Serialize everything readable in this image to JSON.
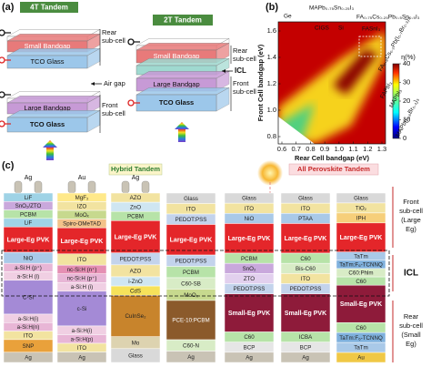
{
  "panel_a": {
    "label": "(a)",
    "four_t": {
      "title": "4T Tandem",
      "rear": [
        "Rear",
        "sub-cell"
      ],
      "rear_layer": "Small Bandgap",
      "rear_glass": "TCO Glass",
      "gap": "Air gap",
      "front_layer": "Large Bandgap",
      "front": [
        "Front",
        "sub-cell"
      ],
      "front_glass": "TCO Glass"
    },
    "two_t": {
      "title": "2T Tandem",
      "rear_layer": "Small Bandgap",
      "rear": [
        "Rear",
        "sub-cell"
      ],
      "icl": "ICL",
      "front_layer": "Large Bandgap",
      "front": [
        "Front",
        "sub-cell"
      ],
      "glass": "TCO Glass"
    }
  },
  "panel_b": {
    "label": "(b)",
    "x_label": "Rear Cell bandgap (eV)",
    "y_label": "Front Cell bandgap (eV)",
    "colorbar_label": "η(%)",
    "xticks": [
      "0.6",
      "0.7",
      "0.8",
      "0.9",
      "1.0",
      "1.1",
      "1.2",
      "1.3"
    ],
    "yticks": [
      "0.8",
      "1.0",
      "1.2",
      "1.4",
      "1.6"
    ],
    "cticks": [
      "0",
      "10",
      "20",
      "30",
      "40"
    ],
    "annotations": [
      "Ge",
      "CIGS",
      "Si",
      "MAPb₀.₇₅Sn₀.₂₅I₃",
      "FA₀.₇₅Cs₀.₂₅Pb₀.₅Sn₀.₅I₃",
      "FASnI₃",
      "FA₀.₈Cs₀.₂Pb(I₀.₇Br₀.₃)₃",
      "FAPbI₃",
      "MAPbI₃",
      "MAPb(I₀.₆Br₀.₄)₃"
    ]
  },
  "panel_c": {
    "label": "(c)",
    "groups": [
      "Hybrid Tandem",
      "All Perovskite Tandem"
    ],
    "side": {
      "front": [
        "Front",
        "sub-cell",
        "(Large",
        "Eg)"
      ],
      "icl": "ICL",
      "rear": [
        "Rear",
        "sub-cell",
        "(Small",
        "Eg)"
      ]
    },
    "columns": [
      {
        "top": "Ag",
        "layers": [
          {
            "label": "LiF",
            "color": "#9fd3e6"
          },
          {
            "label": "SnO₂/ZTO",
            "color": "#c9a8dc"
          },
          {
            "label": "PCBM",
            "color": "#b7e3a8"
          },
          {
            "label": "LiF",
            "color": "#9fd3e6"
          },
          {
            "label": "Large-Eg PVK",
            "color": "#e4262a"
          },
          {
            "label": "NiO",
            "color": "#a9c9e8"
          },
          {
            "label": "a-Si:H (p⁺)",
            "color": "#e8b6d6"
          },
          {
            "label": "a-Si:H (i)",
            "color": "#f0cfe3"
          },
          {
            "label": "C-Si",
            "color": "#a48ad6"
          },
          {
            "label": "a-Si:H(i)",
            "color": "#f0cfe3"
          },
          {
            "label": "a-Si:H(n)",
            "color": "#e8b6d6"
          },
          {
            "label": "ITO",
            "color": "#f2e3a0"
          },
          {
            "label": "SNP",
            "color": "#e9a13b"
          },
          {
            "label": "Ag",
            "color": "#c9c3b5"
          }
        ]
      },
      {
        "top": "Au",
        "layers": [
          {
            "label": "MgF₂",
            "color": "#ffe98a"
          },
          {
            "label": "IZO",
            "color": "#f2e3a0"
          },
          {
            "label": "MoOₓ",
            "color": "#c7d98e"
          },
          {
            "label": "Spiro-OMeTAD",
            "color": "#f3c28a"
          },
          {
            "label": "Large-Eg PVK",
            "color": "#e4262a"
          },
          {
            "label": "ITO",
            "color": "#f2e3a0"
          },
          {
            "label": "nc-Si:H (n⁺)",
            "color": "#e58fb3"
          },
          {
            "label": "nc-Si:H (p⁺)",
            "color": "#e8b6d6"
          },
          {
            "label": "a-Si:H (i)",
            "color": "#f0cfe3"
          },
          {
            "label": "c-Si",
            "color": "#a48ad6"
          },
          {
            "label": "a-Si:H(i)",
            "color": "#f0cfe3"
          },
          {
            "label": "a-Si:H(p)",
            "color": "#e8b6d6"
          },
          {
            "label": "ITO",
            "color": "#f2e3a0"
          },
          {
            "label": "Ag",
            "color": "#c9c3b5"
          }
        ]
      },
      {
        "top": "Ag",
        "layers": [
          {
            "label": "AZO",
            "color": "#f2e3a0"
          },
          {
            "label": "ZnO",
            "color": "#cfe6f2"
          },
          {
            "label": "PCBM",
            "color": "#b7e3a8"
          },
          {
            "label": "Large-Eg PVK",
            "color": "#e4262a"
          },
          {
            "label": "PEDOT:PSS",
            "color": "#c3d3ec"
          },
          {
            "label": "AZO",
            "color": "#f2e3a0"
          },
          {
            "label": "i-ZnO",
            "color": "#cfe6f2"
          },
          {
            "label": "CdS",
            "color": "#f6e25a"
          },
          {
            "label": "CuInSe₂",
            "color": "#c8842c"
          },
          {
            "label": "Mo",
            "color": "#ddd3b0"
          },
          {
            "label": "Glass",
            "color": "#d9d9d9"
          }
        ]
      },
      {
        "top": null,
        "layers": [
          {
            "label": "Glass",
            "color": "#d9d9d9"
          },
          {
            "label": "ITO",
            "color": "#f2e3a0"
          },
          {
            "label": "PEDOT:PSS",
            "color": "#c3d3ec"
          },
          {
            "label": "Large-Eg PVK",
            "color": "#e4262a"
          },
          {
            "label": "PEDOT:PSS",
            "color": "#c3d3ec"
          },
          {
            "label": "PCBM",
            "color": "#b7e3a8"
          },
          {
            "label": "C60-SB",
            "color": "#d8ecc6"
          },
          {
            "label": "MoOₓ",
            "color": "#c7d98e"
          },
          {
            "label": "PCE-10:PCBM",
            "color": "#8b5a2b"
          },
          {
            "label": "C60-N",
            "color": "#d8ecc6"
          },
          {
            "label": "Ag",
            "color": "#c9c3b5"
          }
        ]
      },
      {
        "top": null,
        "layers": [
          {
            "label": "Glass",
            "color": "#d9d9d9"
          },
          {
            "label": "ITO",
            "color": "#f2e3a0"
          },
          {
            "label": "NiO",
            "color": "#a9c9e8"
          },
          {
            "label": "Large-Eg PVK",
            "color": "#e4262a"
          },
          {
            "label": "PCBM",
            "color": "#b7e3a8"
          },
          {
            "label": "SnO₂",
            "color": "#c9a8dc"
          },
          {
            "label": "ZTO",
            "color": "#e2d0ee"
          },
          {
            "label": "PEDOT:PSS",
            "color": "#c3d3ec"
          },
          {
            "label": "Small-Eg PVK",
            "color": "#8e1b3a"
          },
          {
            "label": "C60",
            "color": "#b7e3a8"
          },
          {
            "label": "BCP",
            "color": "#e6e6e6"
          },
          {
            "label": "Ag",
            "color": "#c9c3b5"
          }
        ]
      },
      {
        "top": null,
        "layers": [
          {
            "label": "Glass",
            "color": "#d9d9d9"
          },
          {
            "label": "ITO",
            "color": "#f2e3a0"
          },
          {
            "label": "PTAA",
            "color": "#a9c9e8"
          },
          {
            "label": "Large-Eg PVK",
            "color": "#e4262a"
          },
          {
            "label": "C60",
            "color": "#b7e3a8"
          },
          {
            "label": "Bis-C60",
            "color": "#d8ecc6"
          },
          {
            "label": "ITO",
            "color": "#f2e3a0"
          },
          {
            "label": "PEDOT:PSS",
            "color": "#c3d3ec"
          },
          {
            "label": "Small-Eg PVK",
            "color": "#8e1b3a"
          },
          {
            "label": "ICBA",
            "color": "#b7e3a8"
          },
          {
            "label": "BCP",
            "color": "#e6e6e6"
          },
          {
            "label": "Ag",
            "color": "#c9c3b5"
          }
        ]
      },
      {
        "top": null,
        "layers": [
          {
            "label": "Glass",
            "color": "#d9d9d9"
          },
          {
            "label": "TiO₂",
            "color": "#f2e3a0"
          },
          {
            "label": "IPH",
            "color": "#f6cf7a"
          },
          {
            "label": "Large-Eg PVK",
            "color": "#e4262a"
          },
          {
            "label": "TaTm",
            "color": "#a9c9e8"
          },
          {
            "label": "TaTm:F₆-TCNNQ",
            "color": "#7fb1dd"
          },
          {
            "label": "C60:Phlm",
            "color": "#d8ecc6"
          },
          {
            "label": "C60",
            "color": "#b7e3a8"
          },
          {
            "label": "Small-Eg PVK",
            "color": "#8e1b3a"
          },
          {
            "label": "C60",
            "color": "#b7e3a8"
          },
          {
            "label": "TaTm:F₆-TCNNQ",
            "color": "#7fb1dd"
          },
          {
            "label": "TaTm",
            "color": "#a9c9e8"
          },
          {
            "label": "Au",
            "color": "#f0c846"
          }
        ]
      }
    ]
  }
}
